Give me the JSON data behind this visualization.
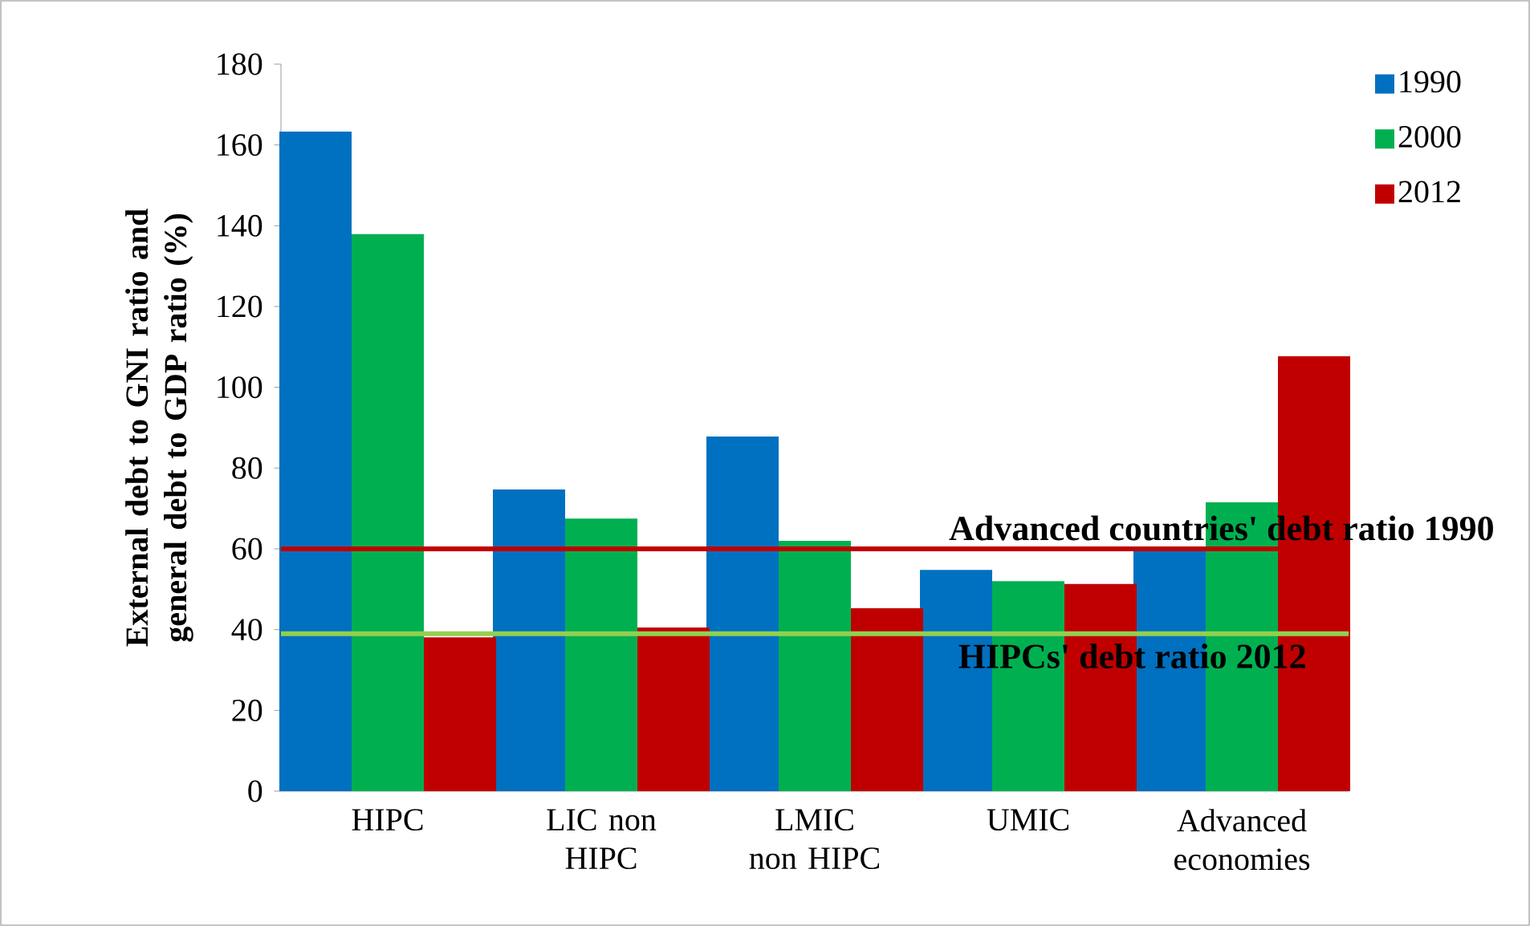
{
  "chart_data": {
    "type": "bar",
    "ylabel": "External debt to GNI  ratio and general debt to GDP ratio (%)",
    "categories": [
      "HIPC",
      "LIC non HIPC",
      "LMIC non HIPC",
      "UMIC",
      "Advanced economies"
    ],
    "series": [
      {
        "name": "1990",
        "color": "#0070c0",
        "values": [
          163.3,
          74.7,
          87.8,
          54.8,
          59.6
        ]
      },
      {
        "name": "2000",
        "color": "#00b050",
        "values": [
          137.9,
          67.5,
          62,
          52,
          71.5
        ]
      },
      {
        "name": "2012",
        "color": "#c00000",
        "values": [
          38.1,
          40.5,
          45.3,
          51.3,
          107.7
        ]
      }
    ],
    "ylim": [
      0,
      180
    ],
    "yticks": [
      0,
      20,
      40,
      60,
      80,
      100,
      120,
      140,
      160,
      180
    ],
    "legend": "right",
    "ref_lines": [
      {
        "axis": "y",
        "value": 60,
        "label": "Advanced countries' debt ratio 1990",
        "color": "#c00000"
      },
      {
        "axis": "y",
        "value": 39,
        "label": "HIPCs' debt ratio 2012",
        "color": "#92d050"
      }
    ]
  }
}
